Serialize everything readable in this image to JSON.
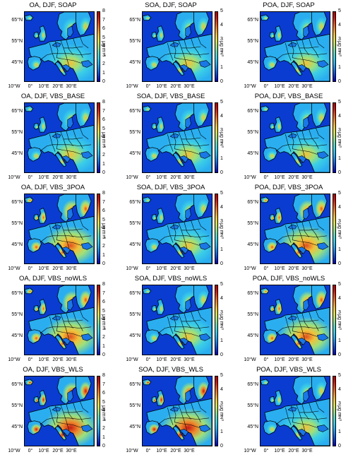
{
  "figure": {
    "colorbar_unit": "μg m⁻³",
    "colormap": [
      "#0000b4",
      "#0a3cd2",
      "#1a78e6",
      "#2aaef0",
      "#3ccfe6",
      "#5fd9b8",
      "#9fe07a",
      "#d8e24a",
      "#f2c13a",
      "#ef8a2c",
      "#e2501f",
      "#c81a14",
      "#a50000"
    ],
    "y_ticks": [
      "65°N",
      "55°N",
      "45°N"
    ],
    "x_ticks": [
      "10°W",
      "0°",
      "10°E",
      "20°E",
      "30°E"
    ],
    "colorbar_ticks_8": [
      "8",
      "7",
      "6",
      "5",
      "4",
      "3",
      "2",
      "1",
      "0"
    ],
    "colorbar_ticks_5": [
      "5",
      "4",
      "3",
      "2",
      "1",
      "0"
    ],
    "panels": [
      {
        "title": "OA, DJF, SOAP",
        "scale": 8,
        "intensity": 0.3
      },
      {
        "title": "SOA, DJF, SOAP",
        "scale": 5,
        "intensity": 0.28
      },
      {
        "title": "POA, DJF, SOAP",
        "scale": 5,
        "intensity": 0.3
      },
      {
        "title": "OA, DJF, VBS_BASE",
        "scale": 8,
        "intensity": 0.22
      },
      {
        "title": "SOA, DJF, VBS_BASE",
        "scale": 5,
        "intensity": 0.24
      },
      {
        "title": "POA, DJF, VBS_BASE",
        "scale": 5,
        "intensity": 0.18
      },
      {
        "title": "OA, DJF, VBS_3POA",
        "scale": 8,
        "intensity": 0.65
      },
      {
        "title": "SOA, DJF, VBS_3POA",
        "scale": 5,
        "intensity": 0.45
      },
      {
        "title": "POA, DJF, VBS_3POA",
        "scale": 5,
        "intensity": 0.62
      },
      {
        "title": "OA, DJF, VBS_noWLS",
        "scale": 8,
        "intensity": 0.6
      },
      {
        "title": "SOA, DJF, VBS_noWLS",
        "scale": 5,
        "intensity": 0.42
      },
      {
        "title": "POA, DJF, VBS_noWLS",
        "scale": 5,
        "intensity": 0.6
      },
      {
        "title": "OA, DJF, VBS_WLS",
        "scale": 8,
        "intensity": 0.85
      },
      {
        "title": "SOA, DJF, VBS_WLS",
        "scale": 5,
        "intensity": 0.82
      },
      {
        "title": "POA, DJF, VBS_WLS",
        "scale": 5,
        "intensity": 0.25
      }
    ]
  }
}
